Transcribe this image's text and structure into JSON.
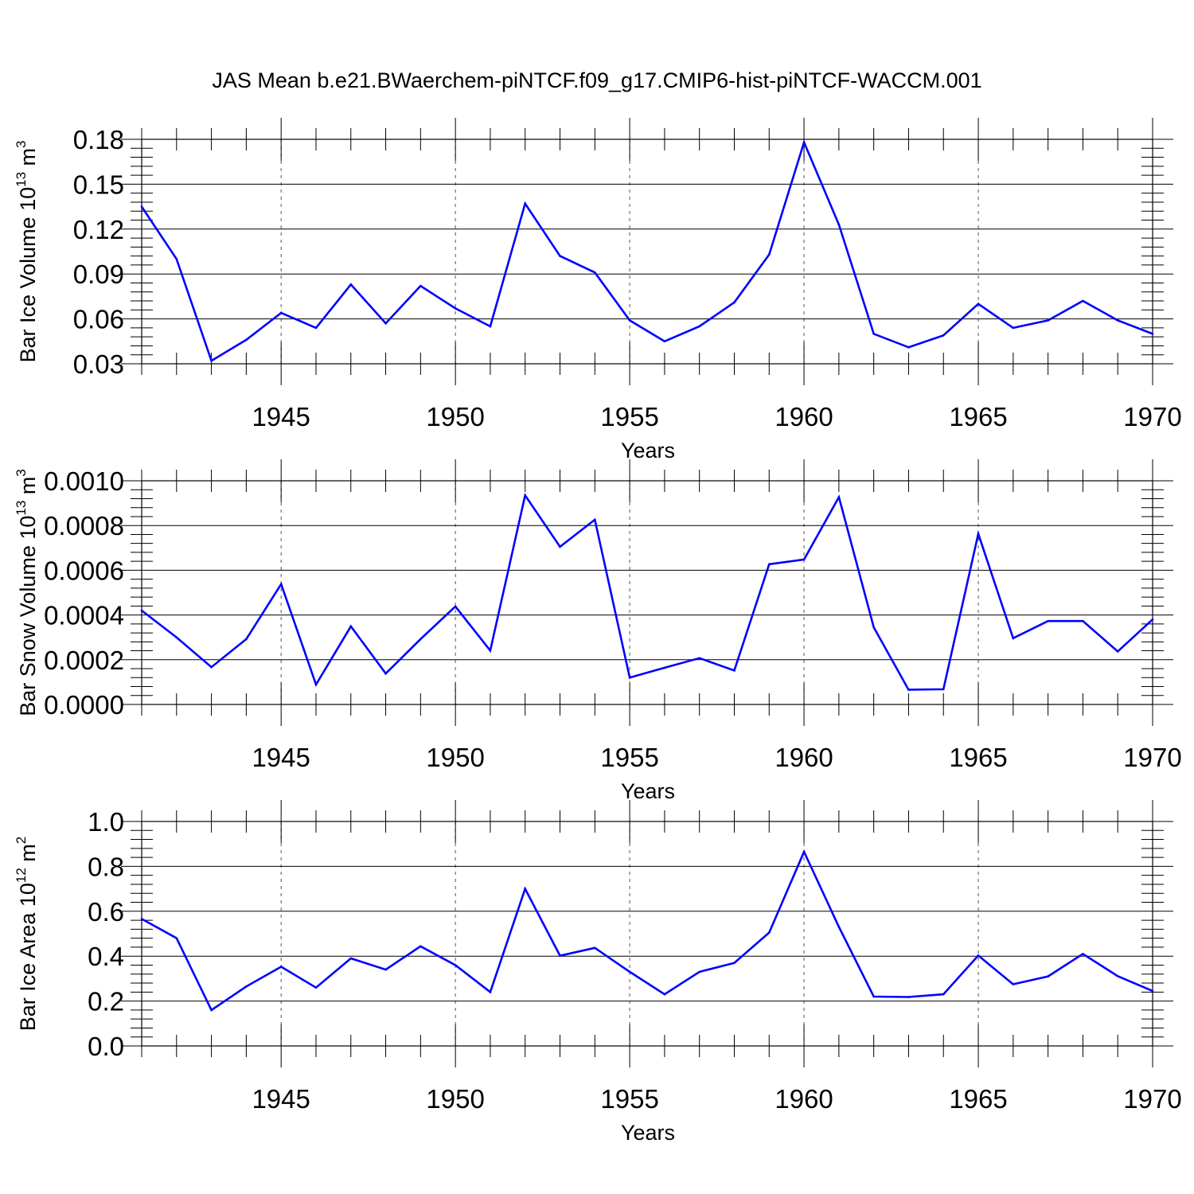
{
  "title": "JAS Mean b.e21.BWaerchem-piNTCF.f09_g17.CMIP6-hist-piNTCF-WACCM.001",
  "colors": {
    "line": "#0000ff",
    "axis": "#000000",
    "grid": "#555555",
    "background": "#ffffff"
  },
  "chart_data": [
    {
      "type": "line",
      "xlabel": "Years",
      "ylabel": "Bar Ice Volume 10",
      "ylabel_exp": "13",
      "ylabel_unit": " m",
      "ylabel_unit_exp": "3",
      "xlim": [
        1941,
        1970
      ],
      "ylim": [
        0.03,
        0.18
      ],
      "xticks": [
        1945,
        1950,
        1955,
        1960,
        1965,
        1970
      ],
      "xtick_labels": [
        "1945",
        "1950",
        "1955",
        "1960",
        "1965",
        "1970"
      ],
      "yticks": [
        0.03,
        0.06,
        0.09,
        0.12,
        0.15,
        0.18
      ],
      "ytick_labels": [
        "0.03",
        "0.06",
        "0.09",
        "0.12",
        "0.15",
        "0.18"
      ],
      "grid_vertical": true,
      "x": [
        1941,
        1942,
        1943,
        1944,
        1945,
        1946,
        1947,
        1948,
        1949,
        1950,
        1951,
        1952,
        1953,
        1954,
        1955,
        1956,
        1957,
        1958,
        1959,
        1960,
        1961,
        1962,
        1963,
        1964,
        1965,
        1966,
        1967,
        1968,
        1969,
        1970
      ],
      "values": [
        0.135,
        0.1,
        0.032,
        0.046,
        0.064,
        0.054,
        0.083,
        0.057,
        0.082,
        0.067,
        0.055,
        0.137,
        0.102,
        0.091,
        0.059,
        0.045,
        0.055,
        0.071,
        0.103,
        0.178,
        0.123,
        0.05,
        0.041,
        0.049,
        0.07,
        0.054,
        0.059,
        0.072,
        0.059,
        0.05
      ]
    },
    {
      "type": "line",
      "xlabel": "Years",
      "ylabel": "Bar Snow Volume 10",
      "ylabel_exp": "13",
      "ylabel_unit": " m",
      "ylabel_unit_exp": "3",
      "xlim": [
        1941,
        1970
      ],
      "ylim": [
        0.0,
        0.001
      ],
      "xticks": [
        1945,
        1950,
        1955,
        1960,
        1965,
        1970
      ],
      "xtick_labels": [
        "1945",
        "1950",
        "1955",
        "1960",
        "1965",
        "1970"
      ],
      "yticks": [
        0.0,
        0.0002,
        0.0004,
        0.0006,
        0.0008,
        0.001
      ],
      "ytick_labels": [
        "0.0000",
        "0.0002",
        "0.0004",
        "0.0006",
        "0.0008",
        "0.0010"
      ],
      "grid_vertical": true,
      "x": [
        1941,
        1942,
        1943,
        1944,
        1945,
        1946,
        1947,
        1948,
        1949,
        1950,
        1951,
        1952,
        1953,
        1954,
        1955,
        1956,
        1957,
        1958,
        1959,
        1960,
        1961,
        1962,
        1963,
        1964,
        1965,
        1966,
        1967,
        1968,
        1969,
        1970
      ],
      "values": [
        0.00042,
        0.0003,
        0.000167,
        0.000292,
        0.000538,
        8.9e-05,
        0.000349,
        0.000138,
        0.000292,
        0.000438,
        0.000241,
        0.000935,
        0.000705,
        0.000826,
        0.00012,
        0.000164,
        0.000207,
        0.000152,
        0.000627,
        0.000648,
        0.000927,
        0.000345,
        6.6e-05,
        6.8e-05,
        0.000763,
        0.000296,
        0.000373,
        0.000373,
        0.000237,
        0.00038
      ]
    },
    {
      "type": "line",
      "xlabel": "Years",
      "ylabel": "Bar Ice Area 10",
      "ylabel_exp": "12",
      "ylabel_unit": " m",
      "ylabel_unit_exp": "2",
      "xlim": [
        1941,
        1970
      ],
      "ylim": [
        0.0,
        1.0
      ],
      "xticks": [
        1945,
        1950,
        1955,
        1960,
        1965,
        1970
      ],
      "xtick_labels": [
        "1945",
        "1950",
        "1955",
        "1960",
        "1965",
        "1970"
      ],
      "yticks": [
        0.0,
        0.2,
        0.4,
        0.6,
        0.8,
        1.0
      ],
      "ytick_labels": [
        "0.0",
        "0.2",
        "0.4",
        "0.6",
        "0.8",
        "1.0"
      ],
      "grid_vertical": true,
      "x": [
        1941,
        1942,
        1943,
        1944,
        1945,
        1946,
        1947,
        1948,
        1949,
        1950,
        1951,
        1952,
        1953,
        1954,
        1955,
        1956,
        1957,
        1958,
        1959,
        1960,
        1961,
        1962,
        1963,
        1964,
        1965,
        1966,
        1967,
        1968,
        1969,
        1970
      ],
      "values": [
        0.566,
        0.48,
        0.16,
        0.265,
        0.353,
        0.26,
        0.39,
        0.34,
        0.444,
        0.36,
        0.24,
        0.7,
        0.402,
        0.437,
        0.33,
        0.23,
        0.33,
        0.37,
        0.505,
        0.865,
        0.53,
        0.22,
        0.218,
        0.23,
        0.403,
        0.275,
        0.31,
        0.41,
        0.311,
        0.245
      ]
    }
  ]
}
